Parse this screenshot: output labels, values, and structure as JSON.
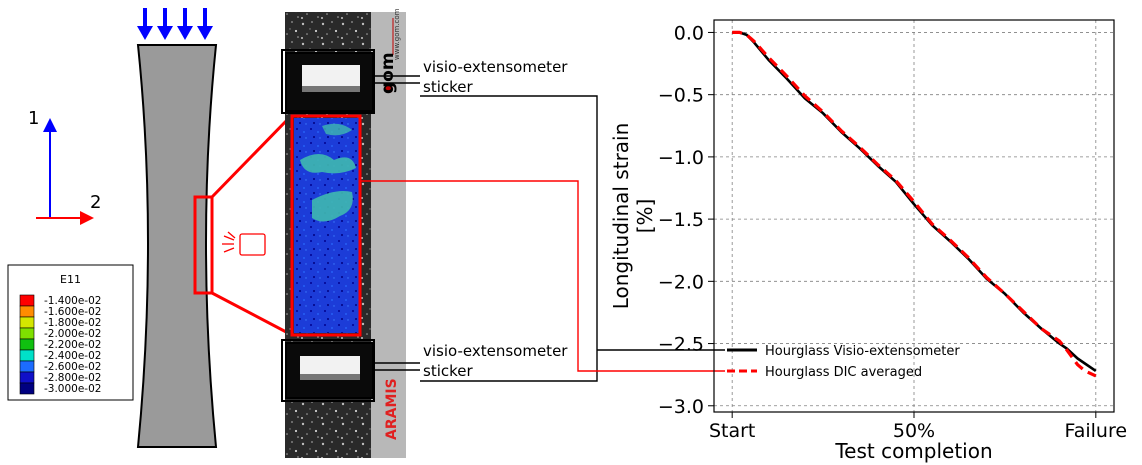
{
  "axes_labels": {
    "direction_1": "1",
    "direction_2": "2"
  },
  "legend_panel": {
    "title": "E11",
    "entries": [
      {
        "label": "-1.400e-02",
        "color": "#ff0000"
      },
      {
        "label": "-1.600e-02",
        "color": "#ff8c00"
      },
      {
        "label": "-1.800e-02",
        "color": "#d4e600"
      },
      {
        "label": "-2.000e-02",
        "color": "#7fe000"
      },
      {
        "label": "-2.200e-02",
        "color": "#10c010"
      },
      {
        "label": "-2.400e-02",
        "color": "#00e0c8"
      },
      {
        "label": "-2.600e-02",
        "color": "#1c6cff"
      },
      {
        "label": "-2.800e-02",
        "color": "#1010c8"
      },
      {
        "label": "-3.000e-02",
        "color": "#000080"
      }
    ]
  },
  "photo": {
    "brand_text": "www.gom.com",
    "brand_logo": "gom",
    "software_label": "ARAMIS"
  },
  "callouts": {
    "top_line1": "visio-extensometer",
    "top_line2": "sticker",
    "bottom_line1": "visio-extensometer",
    "bottom_line2": "sticker"
  },
  "colors": {
    "specimen": "#9a9a9a",
    "arrow_blue": "#0000ff",
    "highlight_red": "#ff0000"
  },
  "chart_data": {
    "type": "line",
    "xlabel": "Test completion",
    "ylabel_line1": "Longitudinal strain",
    "ylabel_line2": "[%]",
    "x_ticks": [
      "Start",
      "50%",
      "Failure"
    ],
    "x_tick_positions": [
      0,
      50,
      100
    ],
    "xlim": [
      -5,
      105
    ],
    "ylim": [
      -3.05,
      0.1
    ],
    "y_ticks": [
      0.0,
      -0.5,
      -1.0,
      -1.5,
      -2.0,
      -2.5,
      -3.0
    ],
    "y_tick_labels": [
      "0.0",
      "−0.5",
      "−1.0",
      "−1.5",
      "−2.0",
      "−2.5",
      "−3.0"
    ],
    "grid": true,
    "legend_location": "lower-right",
    "series": [
      {
        "name": "Hourglass Visio-extensometer",
        "color": "#000000",
        "style": "solid",
        "x": [
          0,
          2,
          4,
          6,
          10,
          15,
          20,
          25,
          30,
          35,
          40,
          45,
          50,
          55,
          60,
          65,
          70,
          75,
          80,
          85,
          90,
          92,
          95,
          97,
          100
        ],
        "y": [
          0.0,
          0.0,
          -0.02,
          -0.08,
          -0.22,
          -0.37,
          -0.53,
          -0.65,
          -0.8,
          -0.93,
          -1.07,
          -1.2,
          -1.38,
          -1.55,
          -1.68,
          -1.82,
          -1.98,
          -2.1,
          -2.25,
          -2.38,
          -2.5,
          -2.54,
          -2.62,
          -2.66,
          -2.72
        ]
      },
      {
        "name": "Hourglass DIC averaged",
        "color": "#ff0000",
        "style": "dashed",
        "x": [
          0,
          2,
          4,
          6,
          10,
          15,
          20,
          25,
          30,
          35,
          40,
          45,
          50,
          55,
          60,
          65,
          70,
          75,
          80,
          85,
          90,
          92,
          95,
          97,
          100
        ],
        "y": [
          0.0,
          0.0,
          -0.02,
          -0.07,
          -0.2,
          -0.35,
          -0.51,
          -0.64,
          -0.79,
          -0.92,
          -1.06,
          -1.19,
          -1.36,
          -1.54,
          -1.67,
          -1.81,
          -1.97,
          -2.1,
          -2.24,
          -2.38,
          -2.48,
          -2.55,
          -2.67,
          -2.72,
          -2.76
        ]
      }
    ]
  }
}
